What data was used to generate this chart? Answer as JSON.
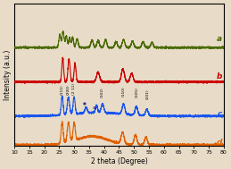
{
  "title": "",
  "xlabel": "2 theta (Degree)",
  "ylabel": "Intensity (a.u.)",
  "xlim": [
    10,
    80
  ],
  "xticks": [
    10,
    15,
    20,
    25,
    30,
    35,
    40,
    45,
    50,
    55,
    60,
    65,
    70,
    75,
    80
  ],
  "colors": {
    "a": "#4a6b00",
    "b": "#cc0000",
    "c": "#1a55ee",
    "d": "#e06000"
  },
  "bg_color": "#e8dcc8",
  "offsets": {
    "a": 0.68,
    "b": 0.44,
    "c": 0.2,
    "d": 0.0
  },
  "miller_annotations": [
    {
      "label": "(111)",
      "x": 26.0
    },
    {
      "label": "(200)",
      "x": 28.1
    },
    {
      "label": "(2 11)",
      "x": 30.0
    },
    {
      "label": "(102)",
      "x": 39.5
    },
    {
      "label": "(110)",
      "x": 46.5
    },
    {
      "label": "(105)",
      "x": 51.0
    },
    {
      "label": "(201)",
      "x": 54.5
    }
  ]
}
